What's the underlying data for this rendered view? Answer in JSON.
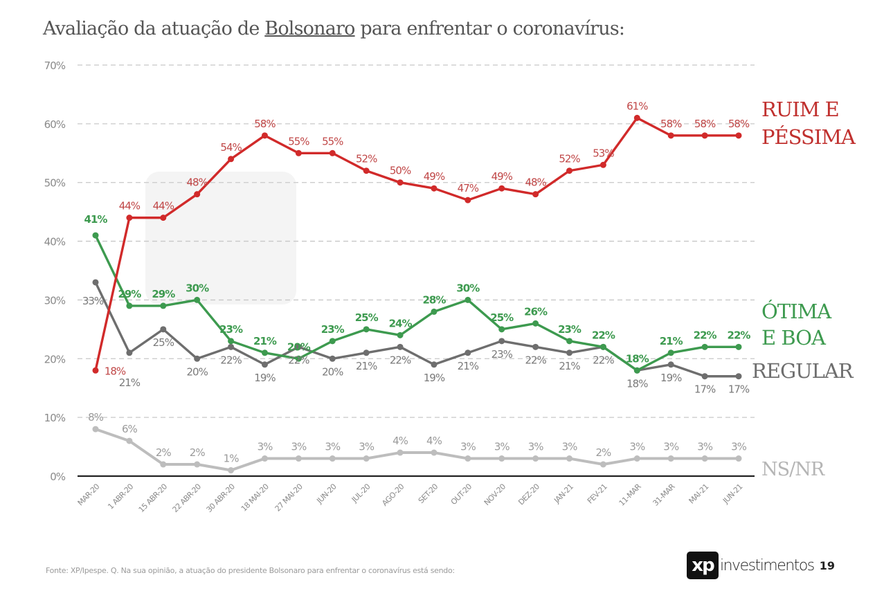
{
  "page": {
    "title_pre": "Avaliação da atuação de ",
    "title_underlined": "Bolsonaro",
    "title_post": " para enfrentar o coronavírus:",
    "footer": "Fonte: XP/Ipespe. Q. Na sua opinião, a atuação do presidente Bolsonaro para enfrentar o coronavírus está sendo:",
    "brand_mark": "xp",
    "brand_name": "investimentos",
    "watermark": "investimentos",
    "page_number": "19"
  },
  "chart_data": {
    "type": "line",
    "title": "Avaliação da atuação de Bolsonaro para enfrentar o coronavírus:",
    "xlabel": "",
    "ylabel": "",
    "ylim": [
      0,
      70
    ],
    "yticks": [
      "0%",
      "10%",
      "20%",
      "30%",
      "40%",
      "50%",
      "60%",
      "70%"
    ],
    "ytick_values": [
      0,
      10,
      20,
      30,
      40,
      50,
      60,
      70
    ],
    "grid": true,
    "legend_placement": "right (inline labels)",
    "categories": [
      "MAR-20",
      "1 ABR-20",
      "15 ABR-20",
      "22 ABR-20",
      "30 ABR-20",
      "18 MAI-20",
      "27 MAI-20",
      "JUN-20",
      "JUL-20",
      "AGO-20",
      "SET-20",
      "OUT-20",
      "NOV-20",
      "DEZ-20",
      "JAN-21",
      "FEV-21",
      "11-MAR",
      "31-MAR",
      "MAI-21",
      "JUN-21"
    ],
    "series": [
      {
        "name": "RUIM E PÉSSIMA",
        "label_lines": [
          "RUIM E",
          "PÉSSIMA"
        ],
        "color": "#d12a2a",
        "label_color": "#c0302e",
        "values": [
          18,
          44,
          44,
          48,
          54,
          58,
          55,
          55,
          52,
          50,
          49,
          47,
          49,
          48,
          52,
          53,
          61,
          58,
          58,
          58
        ]
      },
      {
        "name": "ÓTIMA E BOA",
        "label_lines": [
          "ÓTIMA",
          "E BOA"
        ],
        "color": "#3d9a4f",
        "label_color": "#3d9a4f",
        "values": [
          41,
          29,
          29,
          30,
          23,
          21,
          20,
          23,
          25,
          24,
          28,
          30,
          25,
          26,
          23,
          22,
          18,
          21,
          22,
          22
        ]
      },
      {
        "name": "REGULAR",
        "label_lines": [
          "REGULAR"
        ],
        "color": "#6e6e6e",
        "label_color": "#6e6e6e",
        "values": [
          33,
          21,
          25,
          20,
          22,
          19,
          22,
          20,
          21,
          22,
          19,
          21,
          23,
          22,
          21,
          22,
          18,
          19,
          17,
          17
        ]
      },
      {
        "name": "NS/NR",
        "label_lines": [
          "NS/NR"
        ],
        "color": "#bdbdbd",
        "label_color": "#b5b5b5",
        "values": [
          8,
          6,
          2,
          2,
          1,
          3,
          3,
          3,
          3,
          4,
          4,
          3,
          3,
          3,
          3,
          2,
          3,
          3,
          3,
          3
        ]
      }
    ]
  }
}
